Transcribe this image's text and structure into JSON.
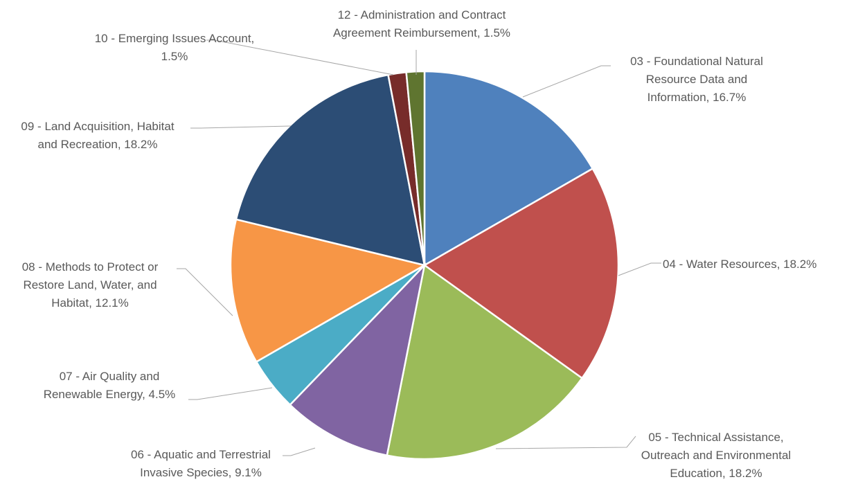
{
  "chart_data": {
    "type": "pie",
    "title": "",
    "start_angle_deg": 0,
    "direction": "clockwise",
    "slices": [
      {
        "label_lines": [
          "03 - Foundational Natural",
          "Resource Data and",
          "Information, 16.7%"
        ],
        "category": "03 - Foundational Natural Resource Data and Information",
        "value": 16.7,
        "color": "#4F81BD"
      },
      {
        "label_lines": [
          "04 - Water Resources, 18.2%"
        ],
        "category": "04 - Water Resources",
        "value": 18.2,
        "color": "#C0504D"
      },
      {
        "label_lines": [
          "05 - Technical Assistance,",
          "Outreach and Environmental",
          "Education, 18.2%"
        ],
        "category": "05 - Technical Assistance, Outreach and Environmental Education",
        "value": 18.2,
        "color": "#9BBB59"
      },
      {
        "label_lines": [
          "06 - Aquatic and Terrestrial",
          "Invasive Species, 9.1%"
        ],
        "category": "06 - Aquatic and Terrestrial Invasive Species",
        "value": 9.1,
        "color": "#8064A2"
      },
      {
        "label_lines": [
          "07 - Air Quality and",
          "Renewable Energy, 4.5%"
        ],
        "category": "07 - Air Quality and Renewable Energy",
        "value": 4.5,
        "color": "#4BACC6"
      },
      {
        "label_lines": [
          "08 - Methods to Protect or",
          "Restore Land, Water, and",
          "Habitat, 12.1%"
        ],
        "category": "08 - Methods to Protect or Restore Land, Water, and Habitat",
        "value": 12.1,
        "color": "#F79646"
      },
      {
        "label_lines": [
          "09 - Land Acquisition, Habitat",
          "and Recreation, 18.2%"
        ],
        "category": "09 - Land Acquisition, Habitat and Recreation",
        "value": 18.2,
        "color": "#2C4D75"
      },
      {
        "label_lines": [
          "10 - Emerging Issues Account,",
          "1.5%"
        ],
        "category": "10 - Emerging Issues Account",
        "value": 1.5,
        "color": "#772C2A"
      },
      {
        "label_lines": [
          "12 - Administration and Contract",
          "Agreement Reimbursement, 1.5%"
        ],
        "category": "12 - Administration and Contract Agreement Reimbursement",
        "value": 1.5,
        "color": "#5F7530"
      }
    ]
  }
}
